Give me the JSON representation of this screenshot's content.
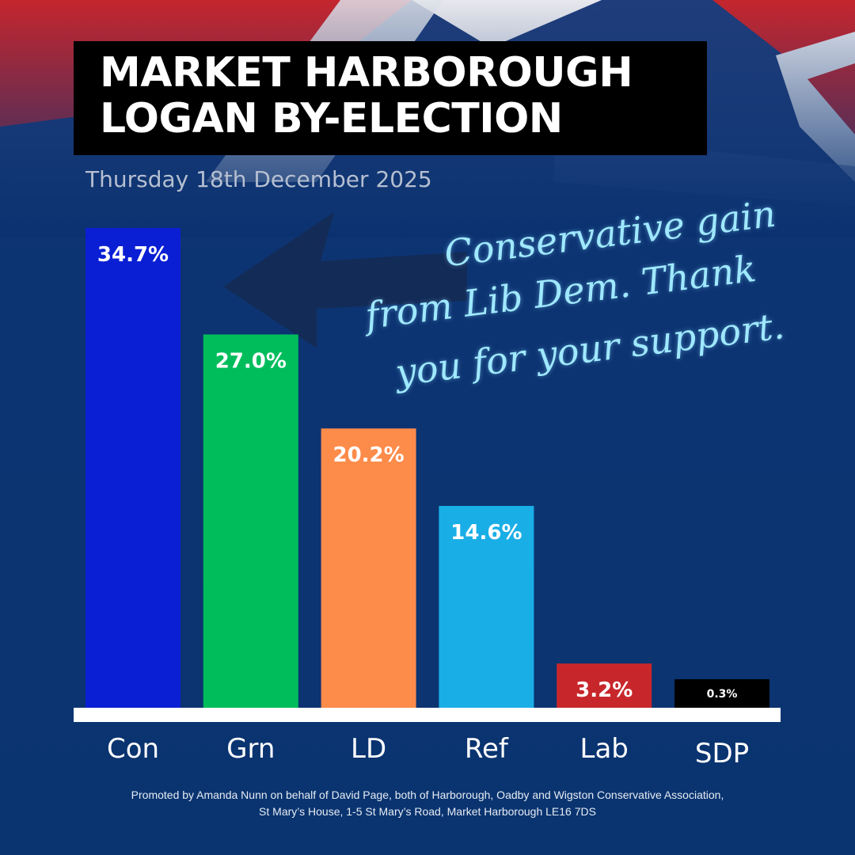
{
  "title": {
    "line1": "MARKET HARBOROUGH",
    "line2": "LOGAN BY-ELECTION"
  },
  "date": "Thursday 18th December 2025",
  "message": {
    "line1": "Conservative gain",
    "line2": "from Lib Dem. Thank",
    "line3": "you for your support."
  },
  "footer": {
    "line1": "Promoted by Amanda Nunn on behalf of David Page, both of Harborough, Oadby and Wigston Conservative Association,",
    "line2": "St Mary’s House, 1-5 St Mary’s Road, Market Harborough LE16 7DS"
  },
  "chart_data": {
    "type": "bar",
    "categories": [
      "Con",
      "Grn",
      "LD",
      "Ref",
      "Lab",
      "SDP"
    ],
    "values": [
      34.7,
      27.0,
      20.2,
      14.6,
      3.2,
      0.3
    ],
    "data_labels": [
      "34.7%",
      "27.0%",
      "20.2%",
      "14.6%",
      "3.2%",
      "0.3%"
    ],
    "colors": [
      "#0a1fd4",
      "#00bd5c",
      "#fd8b4a",
      "#1aaee6",
      "#c7272b",
      "#000000"
    ],
    "ylim": [
      0,
      34.7
    ],
    "grid": false
  },
  "colors": {
    "background": "#0b3270",
    "baseline": "#ffffff",
    "title_box": "#000000",
    "message": "#9fe8ff",
    "arrow": "#152a52"
  }
}
